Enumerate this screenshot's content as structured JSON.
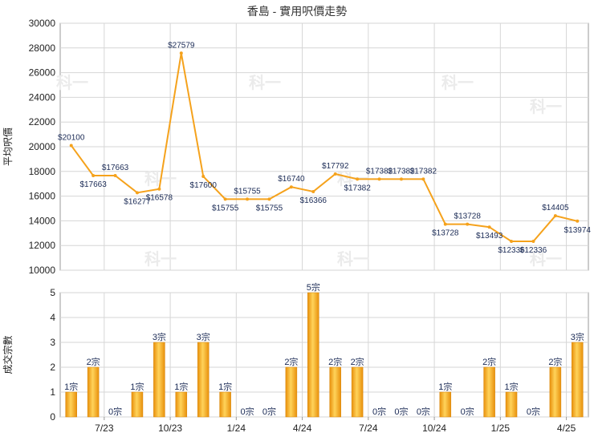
{
  "chart_data": [
    {
      "type": "line",
      "title": "香島 - 實用呎價走勢",
      "ylabel": "平均呎價",
      "ylim": [
        10000,
        30000
      ],
      "yticks": [
        10000,
        12000,
        14000,
        16000,
        18000,
        20000,
        22000,
        24000,
        26000,
        28000,
        30000
      ],
      "grid": true,
      "color": "#f5a21c",
      "values": [
        20100,
        17663,
        17663,
        16277,
        16578,
        27579,
        17600,
        15755,
        15755,
        15755,
        16740,
        16366,
        17792,
        17382,
        17382,
        17382,
        17382,
        13728,
        13728,
        13493,
        12336,
        12336,
        14405,
        13974
      ],
      "labels": [
        "$20100",
        "$17663",
        "$17663",
        "$16277",
        "$16578",
        "$27579",
        "$17600",
        "$15755",
        "$15755",
        "$15755",
        "$16740",
        "$16366",
        "$17792",
        "$17382",
        "$17382",
        "$17382",
        "$17382",
        "$13728",
        "$13728",
        "$13493",
        "$12336",
        "$12336",
        "$14405",
        "$13974"
      ],
      "watermark": "科一"
    },
    {
      "type": "bar",
      "ylabel": "成交宗數",
      "ylim": [
        0,
        5
      ],
      "yticks": [
        0,
        1,
        2,
        3,
        4,
        5
      ],
      "grid": true,
      "color": "#f5a21c",
      "values": [
        1,
        2,
        0,
        1,
        3,
        1,
        3,
        1,
        0,
        0,
        2,
        5,
        2,
        2,
        0,
        0,
        0,
        1,
        0,
        2,
        1,
        0,
        2,
        3
      ],
      "labels": [
        "1宗",
        "2宗",
        "0宗",
        "1宗",
        "3宗",
        "1宗",
        "3宗",
        "1宗",
        "0宗",
        "0宗",
        "2宗",
        "5宗",
        "2宗",
        "2宗",
        "0宗",
        "0宗",
        "0宗",
        "1宗",
        "0宗",
        "2宗",
        "1宗",
        "0宗",
        "2宗",
        "3宗"
      ],
      "x_tick_labels": [
        "7/23",
        "10/23",
        "1/24",
        "4/24",
        "7/24",
        "10/24",
        "1/25",
        "4/25"
      ],
      "x_tick_slots": [
        2,
        5,
        8,
        11,
        14,
        17,
        20,
        23
      ]
    }
  ]
}
